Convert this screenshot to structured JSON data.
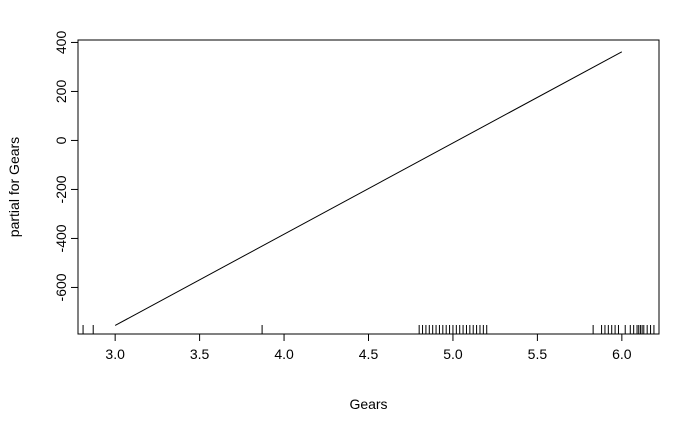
{
  "chart_data": {
    "type": "line",
    "title": "",
    "xlabel": "Gears",
    "ylabel": "partial for Gears",
    "xlim": [
      2.78,
      6.22
    ],
    "ylim": [
      -790,
      410
    ],
    "xticks": [
      "3.0",
      "3.5",
      "4.0",
      "4.5",
      "5.0",
      "5.5",
      "6.0"
    ],
    "yticks": [
      "-600",
      "-400",
      "-200",
      "0",
      "200",
      "400"
    ],
    "grid": false,
    "series": [
      {
        "x": [
          3.0,
          6.0
        ],
        "y": [
          -755,
          362
        ]
      }
    ],
    "rug": [
      2.81,
      2.87,
      3.87,
      4.8,
      4.82,
      4.84,
      4.86,
      4.88,
      4.9,
      4.92,
      4.94,
      4.96,
      4.98,
      5.0,
      5.02,
      5.04,
      5.06,
      5.08,
      5.1,
      5.12,
      5.14,
      5.16,
      5.18,
      5.2,
      5.83,
      5.88,
      5.9,
      5.92,
      5.94,
      5.96,
      5.98,
      6.02,
      6.05,
      6.07,
      6.09,
      6.1,
      6.11,
      6.12,
      6.13,
      6.15,
      6.17,
      6.19
    ]
  }
}
